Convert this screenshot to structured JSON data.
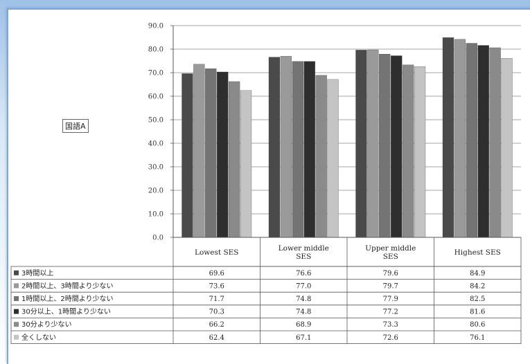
{
  "chart_data": {
    "type": "bar",
    "subject_label": "国語A",
    "categories": [
      "Lowest SES",
      "Lower middle SES",
      "Upper middle SES",
      "Highest SES"
    ],
    "category_lines": [
      [
        "Lowest SES"
      ],
      [
        "Lower middle",
        "SES"
      ],
      [
        "Upper middle",
        "SES"
      ],
      [
        "Highest SES"
      ]
    ],
    "ylim": [
      0,
      90
    ],
    "yticks": [
      "0.0",
      "10.0",
      "20.0",
      "30.0",
      "40.0",
      "50.0",
      "60.0",
      "70.0",
      "80.0",
      "90.0"
    ],
    "grid": true,
    "legend_placement": "data-table",
    "series": [
      {
        "name": "3時間以上",
        "color": "#4a4a4a",
        "values": [
          69.6,
          76.6,
          79.6,
          84.9
        ],
        "labels": [
          "69.6",
          "76.6",
          "79.6",
          "84.9"
        ]
      },
      {
        "name": "2時間以上、3時間より少ない",
        "color": "#9a9a9a",
        "values": [
          73.6,
          77.0,
          79.7,
          84.2
        ],
        "labels": [
          "73.6",
          "77.0",
          "79.7",
          "84.2"
        ]
      },
      {
        "name": "1時間以上、2時間より少ない",
        "color": "#747474",
        "values": [
          71.7,
          74.8,
          77.9,
          82.5
        ],
        "labels": [
          "71.7",
          "74.8",
          "77.9",
          "82.5"
        ]
      },
      {
        "name": "30分以上、1時間より少ない",
        "color": "#2e2e2e",
        "values": [
          70.3,
          74.8,
          77.2,
          81.6
        ],
        "labels": [
          "70.3",
          "74.8",
          "77.2",
          "81.6"
        ]
      },
      {
        "name": "30分より少ない",
        "color": "#8a8a8a",
        "values": [
          66.2,
          68.9,
          73.3,
          80.6
        ],
        "labels": [
          "66.2",
          "68.9",
          "73.3",
          "80.6"
        ]
      },
      {
        "name": "全くしない",
        "color": "#c4c4c4",
        "values": [
          62.4,
          67.1,
          72.6,
          76.1
        ],
        "labels": [
          "62.4",
          "67.1",
          "72.6",
          "76.1"
        ]
      }
    ]
  }
}
